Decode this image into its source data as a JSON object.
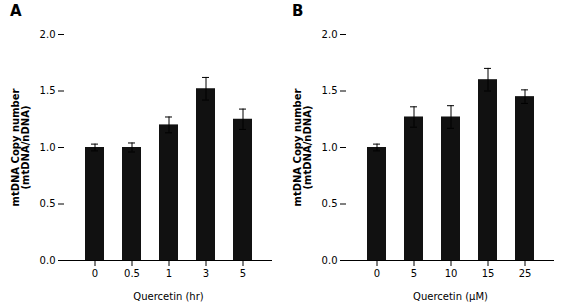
{
  "chart_data": [
    {
      "type": "bar",
      "title": "A",
      "categories": [
        "0",
        "0.5",
        "1",
        "3",
        "5"
      ],
      "values": [
        1.0,
        1.0,
        1.2,
        1.52,
        1.25
      ],
      "errors": [
        0.03,
        0.04,
        0.07,
        0.1,
        0.09
      ],
      "color": "#111111",
      "xlabel": "Quercetin (hr)",
      "ylabel": "mtDNA Copy number\n(mtDNA/nDNA)",
      "ylim": [
        0.0,
        2.0
      ],
      "yticks": [
        {
          "value": 0,
          "label": "0.0"
        },
        0.5,
        {
          "value": 1,
          "label": "1.0"
        },
        1.5,
        {
          "value": 2,
          "label": "2.0"
        }
      ]
    },
    {
      "type": "bar",
      "title": "B",
      "categories": [
        "0",
        "5",
        "10",
        "15",
        "25"
      ],
      "values": [
        1.0,
        1.27,
        1.27,
        1.6,
        1.45
      ],
      "errors": [
        0.03,
        0.09,
        0.1,
        0.1,
        0.06
      ],
      "color": "#111111",
      "xlabel": "Quercetin (μM)",
      "ylabel": "mtDNA Copy number\n(mtDNA/nDNA)",
      "ylim": [
        0.0,
        2.0
      ],
      "yticks": [
        {
          "value": 0,
          "label": "0.0"
        },
        0.5,
        {
          "value": 1,
          "label": "1.0"
        },
        1.5,
        {
          "value": 2,
          "label": "2.0"
        }
      ]
    }
  ]
}
